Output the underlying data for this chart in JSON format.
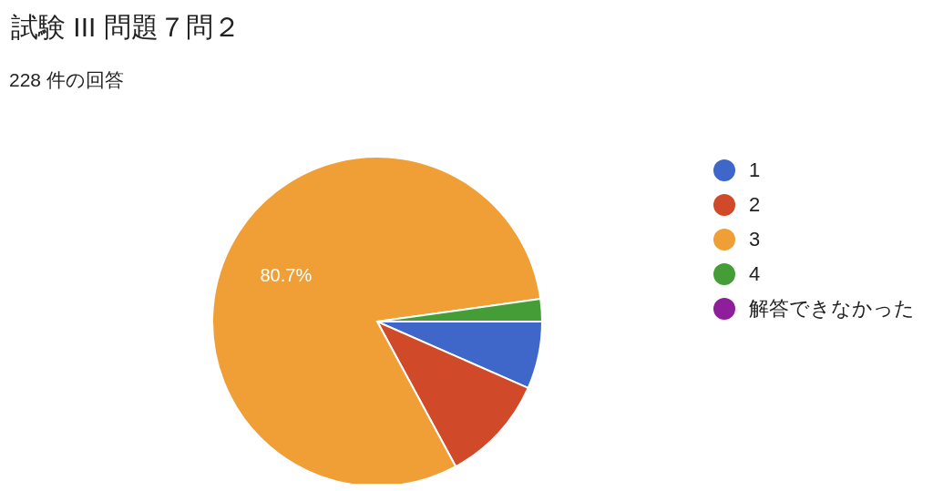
{
  "chart_data": {
    "type": "pie",
    "title": "試験 III 問題７問２",
    "subtitle": "228 件の回答",
    "categories": [
      "1",
      "2",
      "3",
      "4",
      "解答できなかった"
    ],
    "values": [
      6.6,
      10.5,
      80.7,
      2.2,
      0
    ],
    "colors": [
      "#3f66c9",
      "#d04a2a",
      "#f09f37",
      "#449d36",
      "#8e1e9b"
    ],
    "value_labels": [
      null,
      null,
      "80.7%",
      null,
      null
    ],
    "legend": "right"
  }
}
